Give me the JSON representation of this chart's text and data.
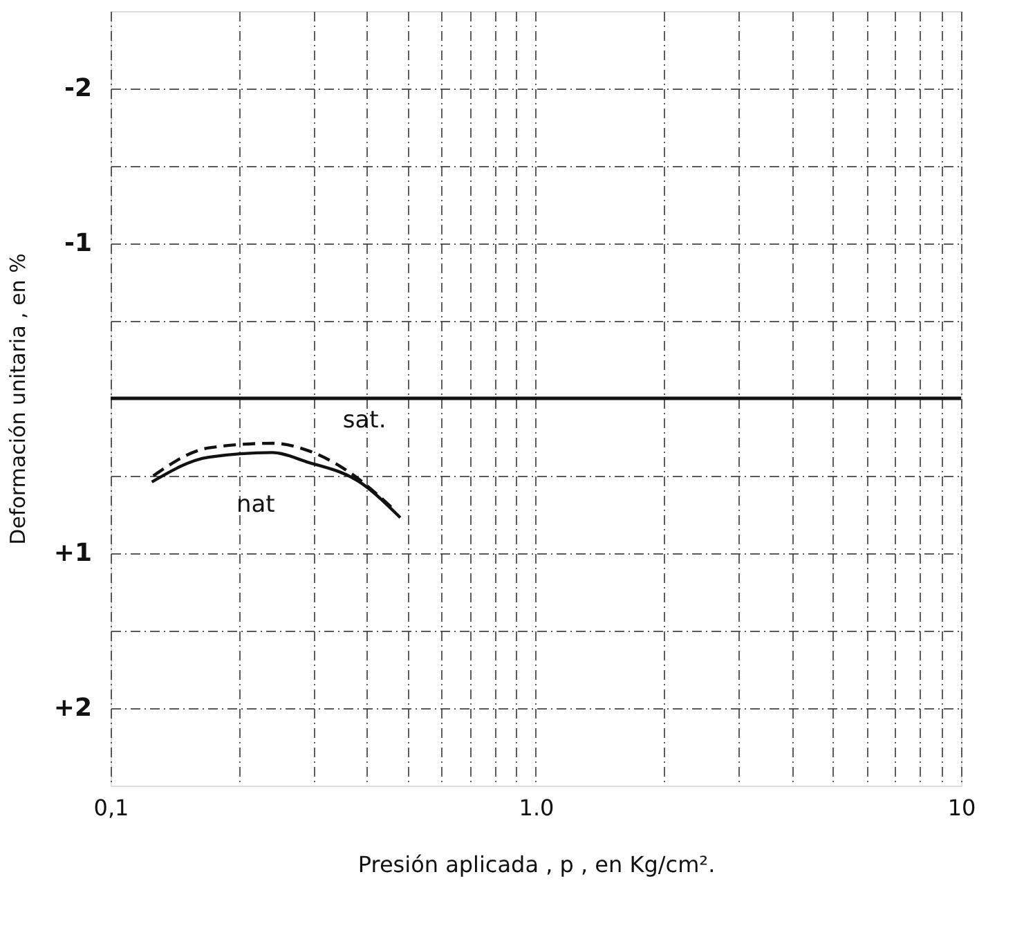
{
  "chart_data": {
    "type": "line",
    "xlabel": "Presión   aplicada  ,  p  ,  en   Kg/cm².",
    "ylabel": "Deformación  unitaria  ,  en  %",
    "log": "x",
    "xlim": [
      0.1,
      10
    ],
    "xticks": [
      {
        "value": 0.1,
        "label": "0,1"
      },
      {
        "value": 0.2,
        "label": null
      },
      {
        "value": 0.3,
        "label": null
      },
      {
        "value": 0.4,
        "label": null
      },
      {
        "value": 0.5,
        "label": null
      },
      {
        "value": 0.6,
        "label": null
      },
      {
        "value": 0.7,
        "label": null
      },
      {
        "value": 0.8,
        "label": null
      },
      {
        "value": 0.9,
        "label": null
      },
      {
        "value": 1,
        "label": "1.0"
      },
      {
        "value": 2,
        "label": null
      },
      {
        "value": 3,
        "label": null
      },
      {
        "value": 4,
        "label": null
      },
      {
        "value": 5,
        "label": null
      },
      {
        "value": 6,
        "label": null
      },
      {
        "value": 7,
        "label": null
      },
      {
        "value": 8,
        "label": null
      },
      {
        "value": 9,
        "label": null
      },
      {
        "value": 10,
        "label": "10"
      }
    ],
    "ylim": [
      2.5,
      -2.5
    ],
    "yticks": [
      {
        "value": -2,
        "label": "-2"
      },
      {
        "value": -1.5,
        "label": null
      },
      {
        "value": -1,
        "label": "-1"
      },
      {
        "value": -0.5,
        "label": null
      },
      {
        "value": 0,
        "label": null
      },
      {
        "value": 0.5,
        "label": null
      },
      {
        "value": 1,
        "label": "+1"
      },
      {
        "value": 1.5,
        "label": null
      },
      {
        "value": 2,
        "label": "+2"
      }
    ],
    "grid": true,
    "series": [
      {
        "name": "sat.",
        "color": "#111111",
        "line_style": "dashed",
        "x": [
          0.126,
          0.17,
          0.24,
          0.293,
          0.352,
          0.469
        ],
        "values": [
          0.5,
          0.32,
          0.29,
          0.34,
          0.45,
          0.73
        ]
      },
      {
        "name": "nat",
        "color": "#111111",
        "line_style": "solid",
        "x": [
          0.125,
          0.17,
          0.24,
          0.289,
          0.385,
          0.48
        ],
        "values": [
          0.54,
          0.38,
          0.35,
          0.41,
          0.54,
          0.77
        ]
      }
    ],
    "ref_lines": [
      {
        "axis": "y",
        "value": 0,
        "label": null,
        "color": "#111111"
      }
    ]
  }
}
